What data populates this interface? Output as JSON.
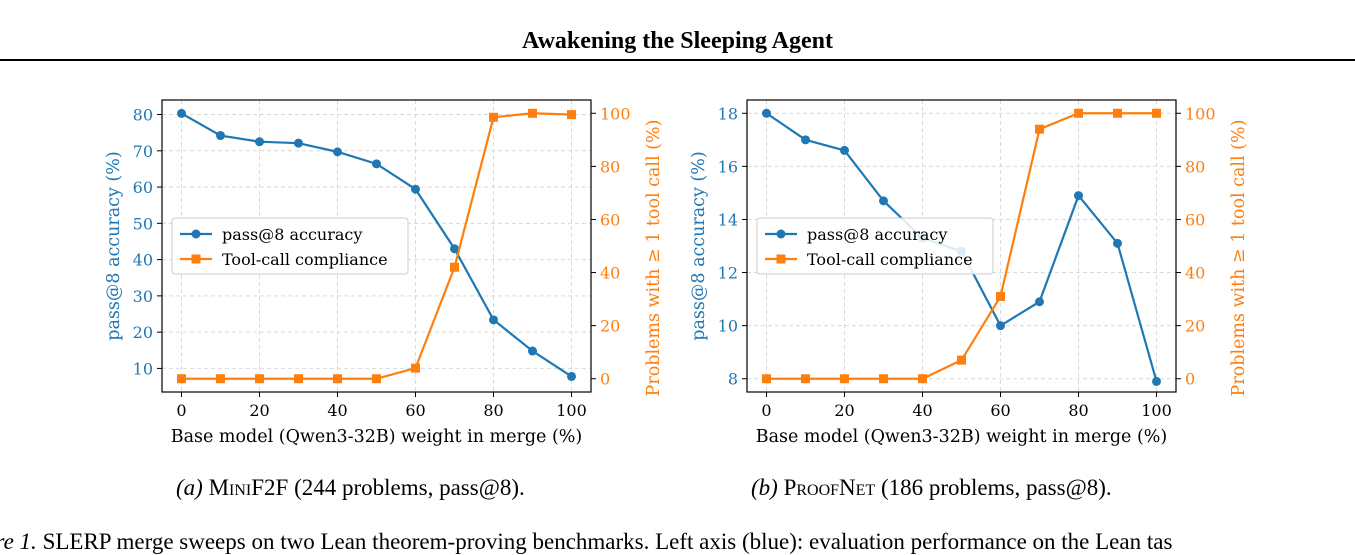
{
  "page": {
    "title": "Awakening the Sleeping Agent"
  },
  "captions": {
    "a": {
      "tag": "(a)",
      "name": "MiniF2F",
      "rest": "(244 problems, pass@8)."
    },
    "b": {
      "tag": "(b)",
      "name": "ProofNet",
      "rest": "(186 problems, pass@8)."
    },
    "figure": {
      "label": "ure 1.",
      "text": "SLERP merge sweeps on two Lean theorem-proving benchmarks. Left axis (blue): evaluation performance on the Lean tas"
    }
  },
  "colors": {
    "left": "#1f77b4",
    "right": "#ff7f0e"
  },
  "chart_data": [
    {
      "type": "line",
      "x": [
        0,
        10,
        20,
        30,
        40,
        50,
        60,
        70,
        80,
        90,
        100
      ],
      "xlabel": "Base model (Qwen3-32B) weight in merge (%)",
      "xlim": [
        -5,
        105
      ],
      "xticks": [
        0,
        20,
        40,
        60,
        80,
        100
      ],
      "ylabel": "pass@8 accuracy (%)",
      "ylim": [
        3.5,
        84
      ],
      "yticks": [
        10,
        20,
        30,
        40,
        50,
        60,
        70,
        80
      ],
      "y2label": "Problems with ≥ 1 tool call (%)",
      "y2lim": [
        -5,
        105
      ],
      "y2ticks": [
        0,
        20,
        40,
        60,
        80,
        100
      ],
      "grid": true,
      "legend_position": "center-left",
      "series": [
        {
          "name": "pass@8 accuracy",
          "axis": "left",
          "color": "#1f77b4",
          "marker": "circle",
          "values": [
            80.3,
            74.2,
            72.5,
            72.1,
            69.7,
            66.4,
            59.4,
            43.0,
            23.4,
            14.8,
            7.8
          ]
        },
        {
          "name": "Tool-call compliance",
          "axis": "right",
          "color": "#ff7f0e",
          "marker": "square",
          "values": [
            0,
            0,
            0,
            0,
            0,
            0,
            4,
            42,
            98.5,
            100,
            99.5
          ]
        }
      ]
    },
    {
      "type": "line",
      "x": [
        0,
        10,
        20,
        30,
        40,
        50,
        60,
        70,
        80,
        90,
        100
      ],
      "xlabel": "Base model (Qwen3-32B) weight in merge (%)",
      "xlim": [
        -5,
        105
      ],
      "xticks": [
        0,
        20,
        40,
        60,
        80,
        100
      ],
      "ylabel": "pass@8 accuracy (%)",
      "ylim": [
        7.5,
        18.5
      ],
      "yticks": [
        8,
        10,
        12,
        14,
        16,
        18
      ],
      "y2label": "Problems with ≥ 1 tool call (%)",
      "y2lim": [
        -5,
        105
      ],
      "y2ticks": [
        0,
        20,
        40,
        60,
        80,
        100
      ],
      "grid": true,
      "legend_position": "center-left",
      "series": [
        {
          "name": "pass@8 accuracy",
          "axis": "left",
          "color": "#1f77b4",
          "marker": "circle",
          "values": [
            18.0,
            17.0,
            16.6,
            14.7,
            13.3,
            12.8,
            10.0,
            10.9,
            14.9,
            13.1,
            7.9
          ]
        },
        {
          "name": "Tool-call compliance",
          "axis": "right",
          "color": "#ff7f0e",
          "marker": "square",
          "values": [
            0,
            0,
            0,
            0,
            0,
            7,
            31,
            94,
            100,
            100,
            100
          ]
        }
      ]
    }
  ]
}
